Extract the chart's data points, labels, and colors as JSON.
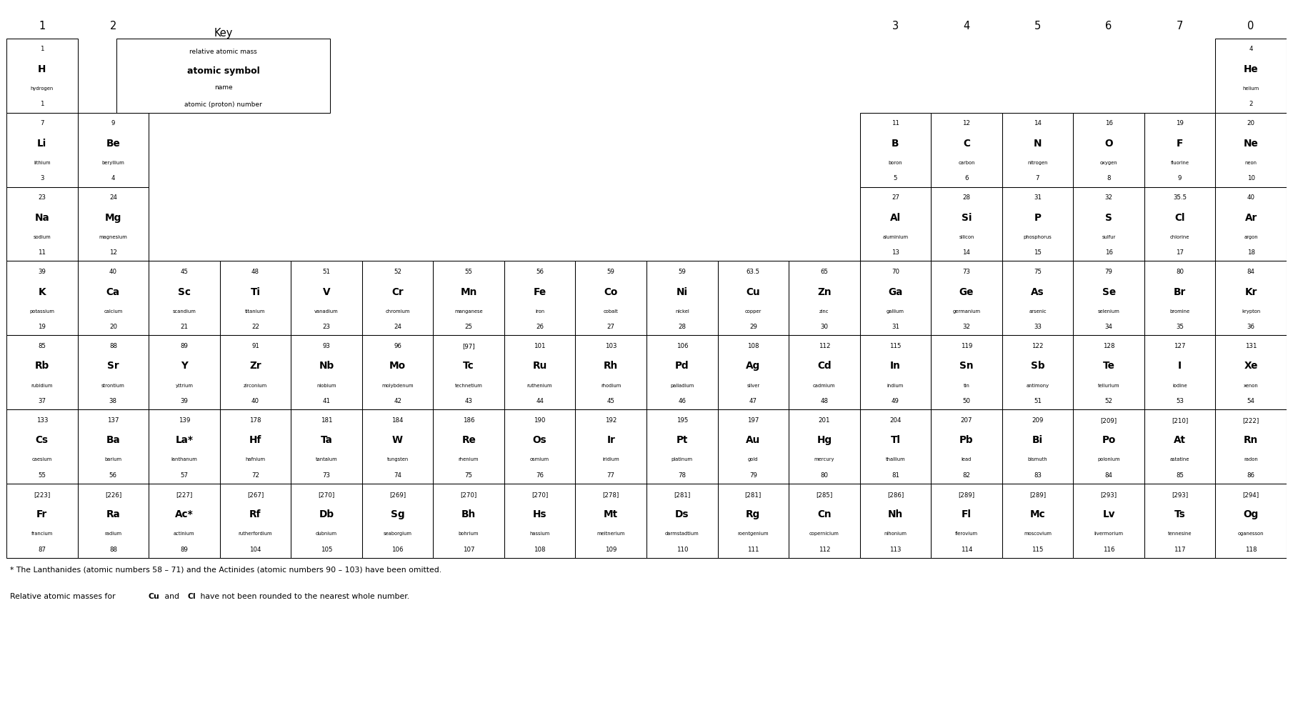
{
  "footnote1": "* The Lanthanides (atomic numbers 58 – 71) and the Actinides (atomic numbers 90 – 103) have been omitted.",
  "footnote2_parts": [
    [
      "Relative atomic masses for ",
      false
    ],
    [
      "Cu",
      true
    ],
    [
      " and ",
      false
    ],
    [
      "Cl",
      true
    ],
    [
      " have not been rounded to the nearest whole number.",
      false
    ]
  ],
  "group_label_cols": {
    "1": "1",
    "2": "2",
    "13": "3",
    "14": "4",
    "15": "5",
    "16": "6",
    "17": "7",
    "18": "0"
  },
  "elements": [
    {
      "mass": "1",
      "symbol": "H",
      "name": "hydrogen",
      "number": "1",
      "row": 1,
      "col": 1
    },
    {
      "mass": "4",
      "symbol": "He",
      "name": "helium",
      "number": "2",
      "row": 1,
      "col": 18
    },
    {
      "mass": "7",
      "symbol": "Li",
      "name": "lithium",
      "number": "3",
      "row": 2,
      "col": 1
    },
    {
      "mass": "9",
      "symbol": "Be",
      "name": "beryllium",
      "number": "4",
      "row": 2,
      "col": 2
    },
    {
      "mass": "11",
      "symbol": "B",
      "name": "boron",
      "number": "5",
      "row": 2,
      "col": 13
    },
    {
      "mass": "12",
      "symbol": "C",
      "name": "carbon",
      "number": "6",
      "row": 2,
      "col": 14
    },
    {
      "mass": "14",
      "symbol": "N",
      "name": "nitrogen",
      "number": "7",
      "row": 2,
      "col": 15
    },
    {
      "mass": "16",
      "symbol": "O",
      "name": "oxygen",
      "number": "8",
      "row": 2,
      "col": 16
    },
    {
      "mass": "19",
      "symbol": "F",
      "name": "fluorine",
      "number": "9",
      "row": 2,
      "col": 17
    },
    {
      "mass": "20",
      "symbol": "Ne",
      "name": "neon",
      "number": "10",
      "row": 2,
      "col": 18
    },
    {
      "mass": "23",
      "symbol": "Na",
      "name": "sodium",
      "number": "11",
      "row": 3,
      "col": 1
    },
    {
      "mass": "24",
      "symbol": "Mg",
      "name": "magnesium",
      "number": "12",
      "row": 3,
      "col": 2
    },
    {
      "mass": "27",
      "symbol": "Al",
      "name": "aluminium",
      "number": "13",
      "row": 3,
      "col": 13
    },
    {
      "mass": "28",
      "symbol": "Si",
      "name": "silicon",
      "number": "14",
      "row": 3,
      "col": 14
    },
    {
      "mass": "31",
      "symbol": "P",
      "name": "phosphorus",
      "number": "15",
      "row": 3,
      "col": 15
    },
    {
      "mass": "32",
      "symbol": "S",
      "name": "sulfur",
      "number": "16",
      "row": 3,
      "col": 16
    },
    {
      "mass": "35.5",
      "symbol": "Cl",
      "name": "chlorine",
      "number": "17",
      "row": 3,
      "col": 17
    },
    {
      "mass": "40",
      "symbol": "Ar",
      "name": "argon",
      "number": "18",
      "row": 3,
      "col": 18
    },
    {
      "mass": "39",
      "symbol": "K",
      "name": "potassium",
      "number": "19",
      "row": 4,
      "col": 1
    },
    {
      "mass": "40",
      "symbol": "Ca",
      "name": "calcium",
      "number": "20",
      "row": 4,
      "col": 2
    },
    {
      "mass": "45",
      "symbol": "Sc",
      "name": "scandium",
      "number": "21",
      "row": 4,
      "col": 3
    },
    {
      "mass": "48",
      "symbol": "Ti",
      "name": "titanium",
      "number": "22",
      "row": 4,
      "col": 4
    },
    {
      "mass": "51",
      "symbol": "V",
      "name": "vanadium",
      "number": "23",
      "row": 4,
      "col": 5
    },
    {
      "mass": "52",
      "symbol": "Cr",
      "name": "chromium",
      "number": "24",
      "row": 4,
      "col": 6
    },
    {
      "mass": "55",
      "symbol": "Mn",
      "name": "manganese",
      "number": "25",
      "row": 4,
      "col": 7
    },
    {
      "mass": "56",
      "symbol": "Fe",
      "name": "iron",
      "number": "26",
      "row": 4,
      "col": 8
    },
    {
      "mass": "59",
      "symbol": "Co",
      "name": "cobalt",
      "number": "27",
      "row": 4,
      "col": 9
    },
    {
      "mass": "59",
      "symbol": "Ni",
      "name": "nickel",
      "number": "28",
      "row": 4,
      "col": 10
    },
    {
      "mass": "63.5",
      "symbol": "Cu",
      "name": "copper",
      "number": "29",
      "row": 4,
      "col": 11
    },
    {
      "mass": "65",
      "symbol": "Zn",
      "name": "zinc",
      "number": "30",
      "row": 4,
      "col": 12
    },
    {
      "mass": "70",
      "symbol": "Ga",
      "name": "gallium",
      "number": "31",
      "row": 4,
      "col": 13
    },
    {
      "mass": "73",
      "symbol": "Ge",
      "name": "germanium",
      "number": "32",
      "row": 4,
      "col": 14
    },
    {
      "mass": "75",
      "symbol": "As",
      "name": "arsenic",
      "number": "33",
      "row": 4,
      "col": 15
    },
    {
      "mass": "79",
      "symbol": "Se",
      "name": "selenium",
      "number": "34",
      "row": 4,
      "col": 16
    },
    {
      "mass": "80",
      "symbol": "Br",
      "name": "bromine",
      "number": "35",
      "row": 4,
      "col": 17
    },
    {
      "mass": "84",
      "symbol": "Kr",
      "name": "krypton",
      "number": "36",
      "row": 4,
      "col": 18
    },
    {
      "mass": "85",
      "symbol": "Rb",
      "name": "rubidium",
      "number": "37",
      "row": 5,
      "col": 1
    },
    {
      "mass": "88",
      "symbol": "Sr",
      "name": "strontium",
      "number": "38",
      "row": 5,
      "col": 2
    },
    {
      "mass": "89",
      "symbol": "Y",
      "name": "yttrium",
      "number": "39",
      "row": 5,
      "col": 3
    },
    {
      "mass": "91",
      "symbol": "Zr",
      "name": "zirconium",
      "number": "40",
      "row": 5,
      "col": 4
    },
    {
      "mass": "93",
      "symbol": "Nb",
      "name": "niobium",
      "number": "41",
      "row": 5,
      "col": 5
    },
    {
      "mass": "96",
      "symbol": "Mo",
      "name": "molybdenum",
      "number": "42",
      "row": 5,
      "col": 6
    },
    {
      "mass": "[97]",
      "symbol": "Tc",
      "name": "technetium",
      "number": "43",
      "row": 5,
      "col": 7
    },
    {
      "mass": "101",
      "symbol": "Ru",
      "name": "ruthenium",
      "number": "44",
      "row": 5,
      "col": 8
    },
    {
      "mass": "103",
      "symbol": "Rh",
      "name": "rhodium",
      "number": "45",
      "row": 5,
      "col": 9
    },
    {
      "mass": "106",
      "symbol": "Pd",
      "name": "palladium",
      "number": "46",
      "row": 5,
      "col": 10
    },
    {
      "mass": "108",
      "symbol": "Ag",
      "name": "silver",
      "number": "47",
      "row": 5,
      "col": 11
    },
    {
      "mass": "112",
      "symbol": "Cd",
      "name": "cadmium",
      "number": "48",
      "row": 5,
      "col": 12
    },
    {
      "mass": "115",
      "symbol": "In",
      "name": "indium",
      "number": "49",
      "row": 5,
      "col": 13
    },
    {
      "mass": "119",
      "symbol": "Sn",
      "name": "tin",
      "number": "50",
      "row": 5,
      "col": 14
    },
    {
      "mass": "122",
      "symbol": "Sb",
      "name": "antimony",
      "number": "51",
      "row": 5,
      "col": 15
    },
    {
      "mass": "128",
      "symbol": "Te",
      "name": "tellurium",
      "number": "52",
      "row": 5,
      "col": 16
    },
    {
      "mass": "127",
      "symbol": "I",
      "name": "iodine",
      "number": "53",
      "row": 5,
      "col": 17
    },
    {
      "mass": "131",
      "symbol": "Xe",
      "name": "xenon",
      "number": "54",
      "row": 5,
      "col": 18
    },
    {
      "mass": "133",
      "symbol": "Cs",
      "name": "caesium",
      "number": "55",
      "row": 6,
      "col": 1
    },
    {
      "mass": "137",
      "symbol": "Ba",
      "name": "barium",
      "number": "56",
      "row": 6,
      "col": 2
    },
    {
      "mass": "139",
      "symbol": "La*",
      "name": "lanthanum",
      "number": "57",
      "row": 6,
      "col": 3
    },
    {
      "mass": "178",
      "symbol": "Hf",
      "name": "hafnium",
      "number": "72",
      "row": 6,
      "col": 4
    },
    {
      "mass": "181",
      "symbol": "Ta",
      "name": "tantalum",
      "number": "73",
      "row": 6,
      "col": 5
    },
    {
      "mass": "184",
      "symbol": "W",
      "name": "tungsten",
      "number": "74",
      "row": 6,
      "col": 6
    },
    {
      "mass": "186",
      "symbol": "Re",
      "name": "rhenium",
      "number": "75",
      "row": 6,
      "col": 7
    },
    {
      "mass": "190",
      "symbol": "Os",
      "name": "osmium",
      "number": "76",
      "row": 6,
      "col": 8
    },
    {
      "mass": "192",
      "symbol": "Ir",
      "name": "iridium",
      "number": "77",
      "row": 6,
      "col": 9
    },
    {
      "mass": "195",
      "symbol": "Pt",
      "name": "platinum",
      "number": "78",
      "row": 6,
      "col": 10
    },
    {
      "mass": "197",
      "symbol": "Au",
      "name": "gold",
      "number": "79",
      "row": 6,
      "col": 11
    },
    {
      "mass": "201",
      "symbol": "Hg",
      "name": "mercury",
      "number": "80",
      "row": 6,
      "col": 12
    },
    {
      "mass": "204",
      "symbol": "Tl",
      "name": "thallium",
      "number": "81",
      "row": 6,
      "col": 13
    },
    {
      "mass": "207",
      "symbol": "Pb",
      "name": "lead",
      "number": "82",
      "row": 6,
      "col": 14
    },
    {
      "mass": "209",
      "symbol": "Bi",
      "name": "bismuth",
      "number": "83",
      "row": 6,
      "col": 15
    },
    {
      "mass": "[209]",
      "symbol": "Po",
      "name": "polonium",
      "number": "84",
      "row": 6,
      "col": 16
    },
    {
      "mass": "[210]",
      "symbol": "At",
      "name": "astatine",
      "number": "85",
      "row": 6,
      "col": 17
    },
    {
      "mass": "[222]",
      "symbol": "Rn",
      "name": "radon",
      "number": "86",
      "row": 6,
      "col": 18
    },
    {
      "mass": "[223]",
      "symbol": "Fr",
      "name": "francium",
      "number": "87",
      "row": 7,
      "col": 1
    },
    {
      "mass": "[226]",
      "symbol": "Ra",
      "name": "radium",
      "number": "88",
      "row": 7,
      "col": 2
    },
    {
      "mass": "[227]",
      "symbol": "Ac*",
      "name": "actinium",
      "number": "89",
      "row": 7,
      "col": 3
    },
    {
      "mass": "[267]",
      "symbol": "Rf",
      "name": "rutherfordium",
      "number": "104",
      "row": 7,
      "col": 4
    },
    {
      "mass": "[270]",
      "symbol": "Db",
      "name": "dubnium",
      "number": "105",
      "row": 7,
      "col": 5
    },
    {
      "mass": "[269]",
      "symbol": "Sg",
      "name": "seaborgium",
      "number": "106",
      "row": 7,
      "col": 6
    },
    {
      "mass": "[270]",
      "symbol": "Bh",
      "name": "bohrium",
      "number": "107",
      "row": 7,
      "col": 7
    },
    {
      "mass": "[270]",
      "symbol": "Hs",
      "name": "hassium",
      "number": "108",
      "row": 7,
      "col": 8
    },
    {
      "mass": "[278]",
      "symbol": "Mt",
      "name": "meitnerium",
      "number": "109",
      "row": 7,
      "col": 9
    },
    {
      "mass": "[281]",
      "symbol": "Ds",
      "name": "darmstadtium",
      "number": "110",
      "row": 7,
      "col": 10
    },
    {
      "mass": "[281]",
      "symbol": "Rg",
      "name": "roentgenium",
      "number": "111",
      "row": 7,
      "col": 11
    },
    {
      "mass": "[285]",
      "symbol": "Cn",
      "name": "copernicium",
      "number": "112",
      "row": 7,
      "col": 12
    },
    {
      "mass": "[286]",
      "symbol": "Nh",
      "name": "nihonium",
      "number": "113",
      "row": 7,
      "col": 13
    },
    {
      "mass": "[289]",
      "symbol": "Fl",
      "name": "flerovium",
      "number": "114",
      "row": 7,
      "col": 14
    },
    {
      "mass": "[289]",
      "symbol": "Mc",
      "name": "moscovium",
      "number": "115",
      "row": 7,
      "col": 15
    },
    {
      "mass": "[293]",
      "symbol": "Lv",
      "name": "livermorium",
      "number": "116",
      "row": 7,
      "col": 16
    },
    {
      "mass": "[293]",
      "symbol": "Ts",
      "name": "tennesine",
      "number": "117",
      "row": 7,
      "col": 17
    },
    {
      "mass": "[294]",
      "symbol": "Og",
      "name": "oganesson",
      "number": "118",
      "row": 7,
      "col": 18
    }
  ],
  "key_lines": [
    [
      "relative atomic mass",
      false,
      6.5
    ],
    [
      "atomic symbol",
      true,
      9.0
    ],
    [
      "name",
      false,
      6.5
    ],
    [
      "atomic (proton) number",
      false,
      6.5
    ]
  ]
}
